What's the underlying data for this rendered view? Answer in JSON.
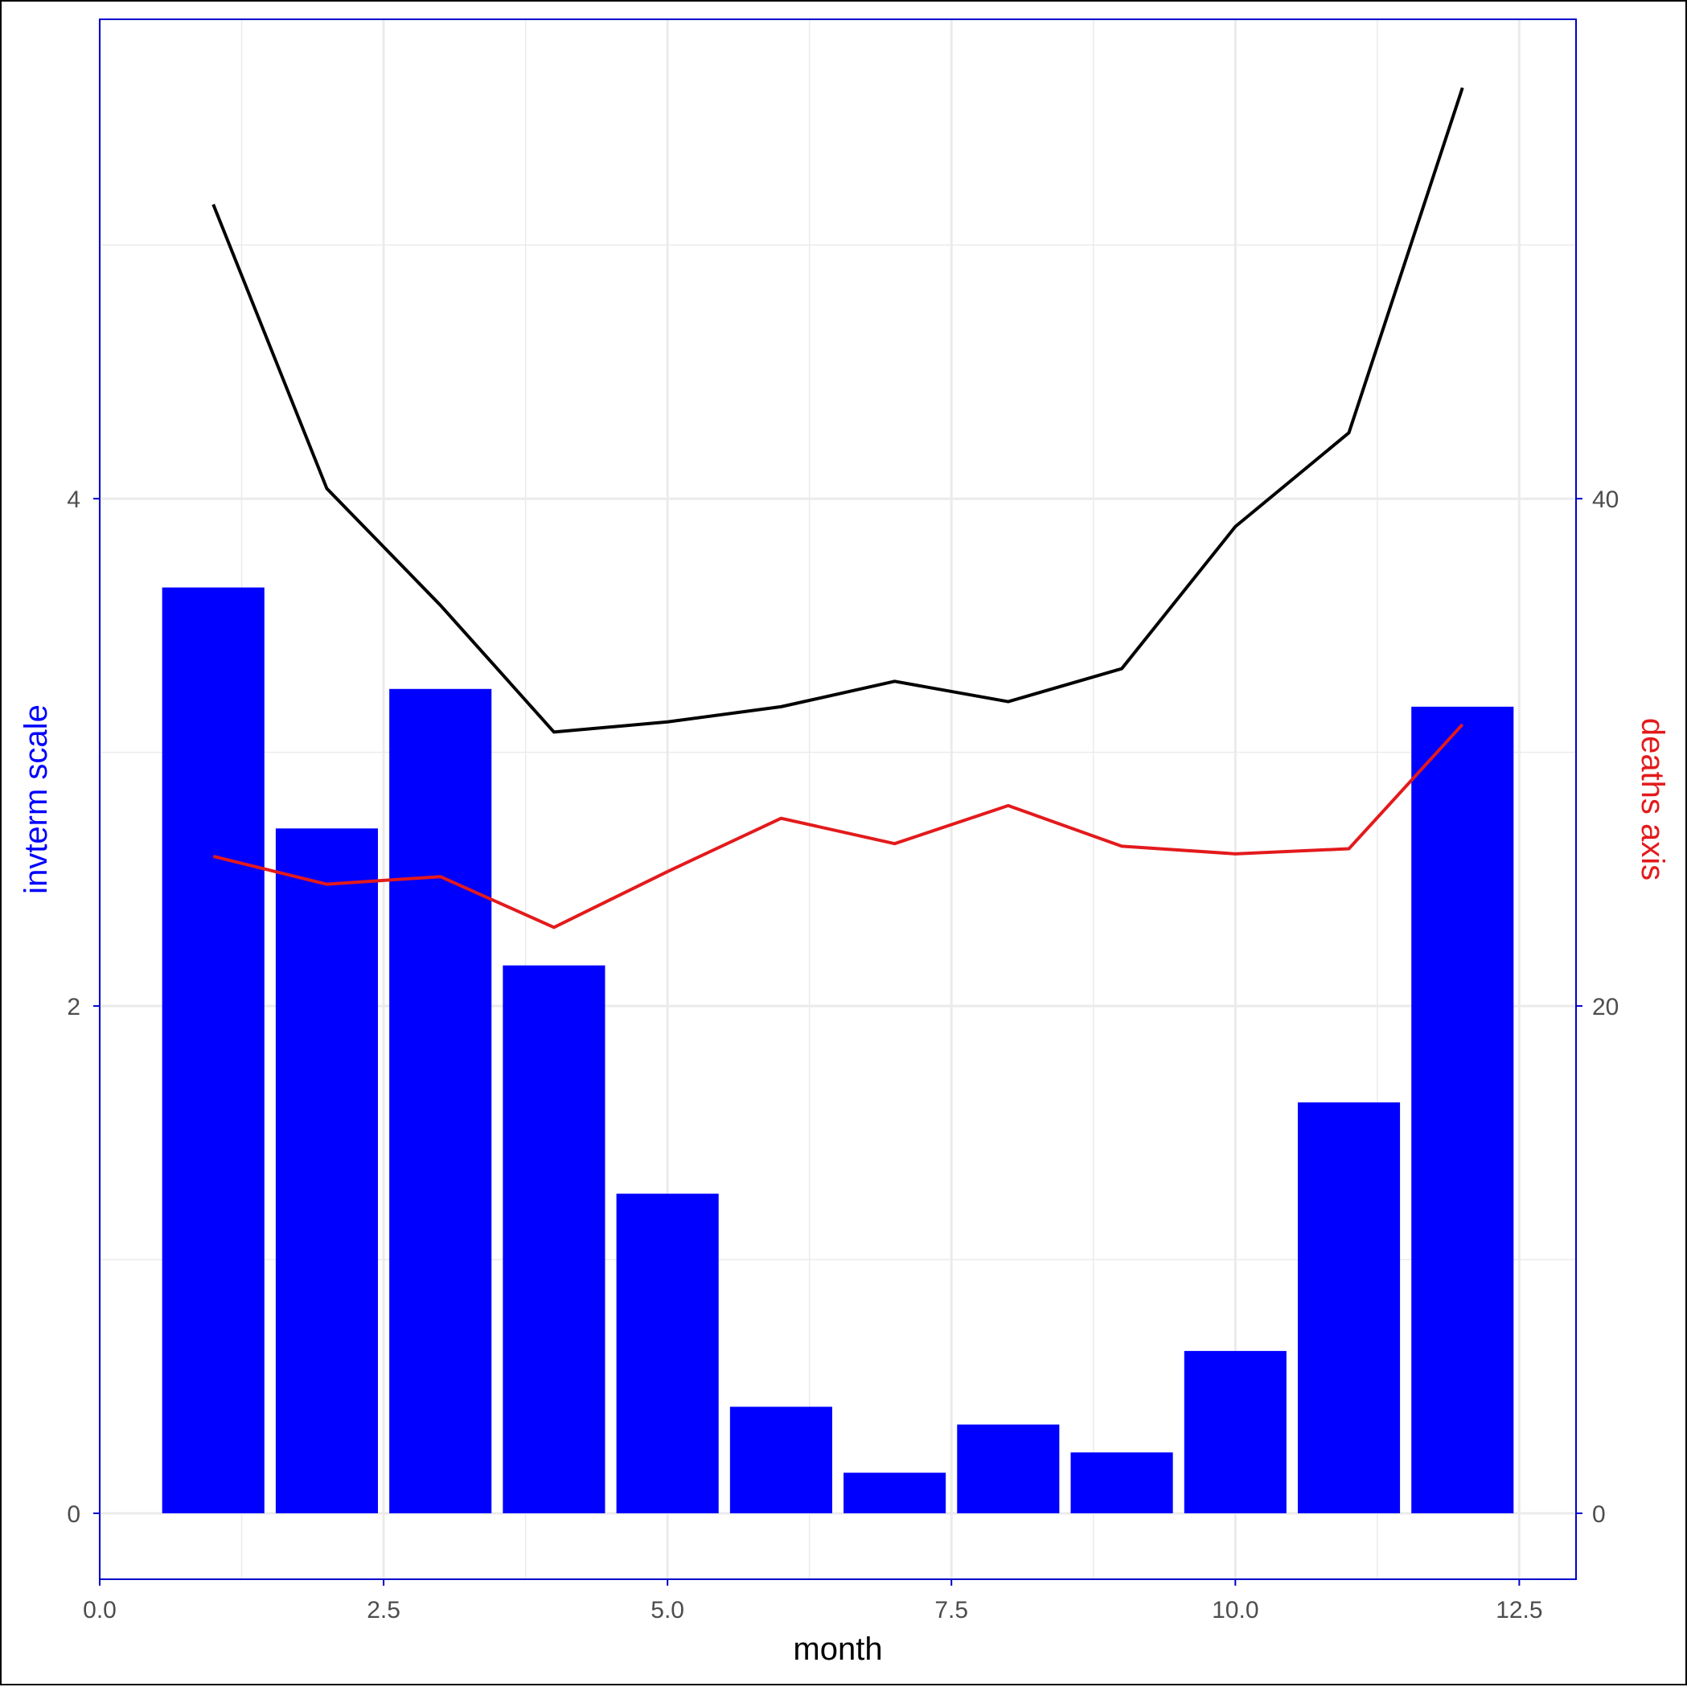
{
  "chart_data": {
    "type": "bar",
    "title": "",
    "xlabel": "month",
    "ylabel_left": "invterm scale",
    "ylabel_right": "deaths axis",
    "xlim": [
      0,
      13
    ],
    "ylim_left": [
      -0.26,
      5.89
    ],
    "ylim_right": [
      -2.6,
      58.9
    ],
    "x_ticks": [
      0,
      2.5,
      5,
      7.5,
      10,
      12.5
    ],
    "x_tick_labels": [
      "0.0",
      "2.5",
      "5.0",
      "7.5",
      "10.0",
      "12.5"
    ],
    "y_left_ticks": [
      0,
      2,
      4
    ],
    "y_left_tick_labels": [
      "0",
      "2",
      "4"
    ],
    "y_right_ticks": [
      0,
      20,
      40
    ],
    "y_right_tick_labels": [
      "0",
      "20",
      "40"
    ],
    "grid": true,
    "legend": "none",
    "colors": {
      "bars": "#0000ff",
      "line_black": "#000000",
      "line_red": "#e31a1c",
      "left_title": "#0000ff",
      "right_title": "#e31a1c",
      "panel_border": "#0000cd",
      "grid": "#ebebeb"
    },
    "bars": {
      "axis": "left",
      "x": [
        1,
        2,
        3,
        4,
        5,
        6,
        7,
        8,
        9,
        10,
        11,
        12
      ],
      "values": [
        3.65,
        2.7,
        3.25,
        2.16,
        1.26,
        0.42,
        0.16,
        0.35,
        0.24,
        0.64,
        1.62,
        3.18
      ]
    },
    "series": [
      {
        "axis": "right",
        "color": "black",
        "x": [
          1,
          2,
          3,
          4,
          5,
          6,
          7,
          8,
          9,
          10,
          11,
          12
        ],
        "values": [
          51.6,
          40.4,
          35.8,
          30.8,
          31.2,
          31.8,
          32.8,
          32.0,
          33.3,
          38.9,
          42.6,
          56.2
        ]
      },
      {
        "axis": "right",
        "color": "red",
        "x": [
          1,
          2,
          3,
          4,
          5,
          6,
          7,
          8,
          9,
          10,
          11,
          12
        ],
        "values": [
          25.9,
          24.8,
          25.1,
          23.1,
          25.3,
          27.4,
          26.4,
          27.9,
          26.3,
          26.0,
          26.2,
          31.1
        ]
      }
    ]
  }
}
